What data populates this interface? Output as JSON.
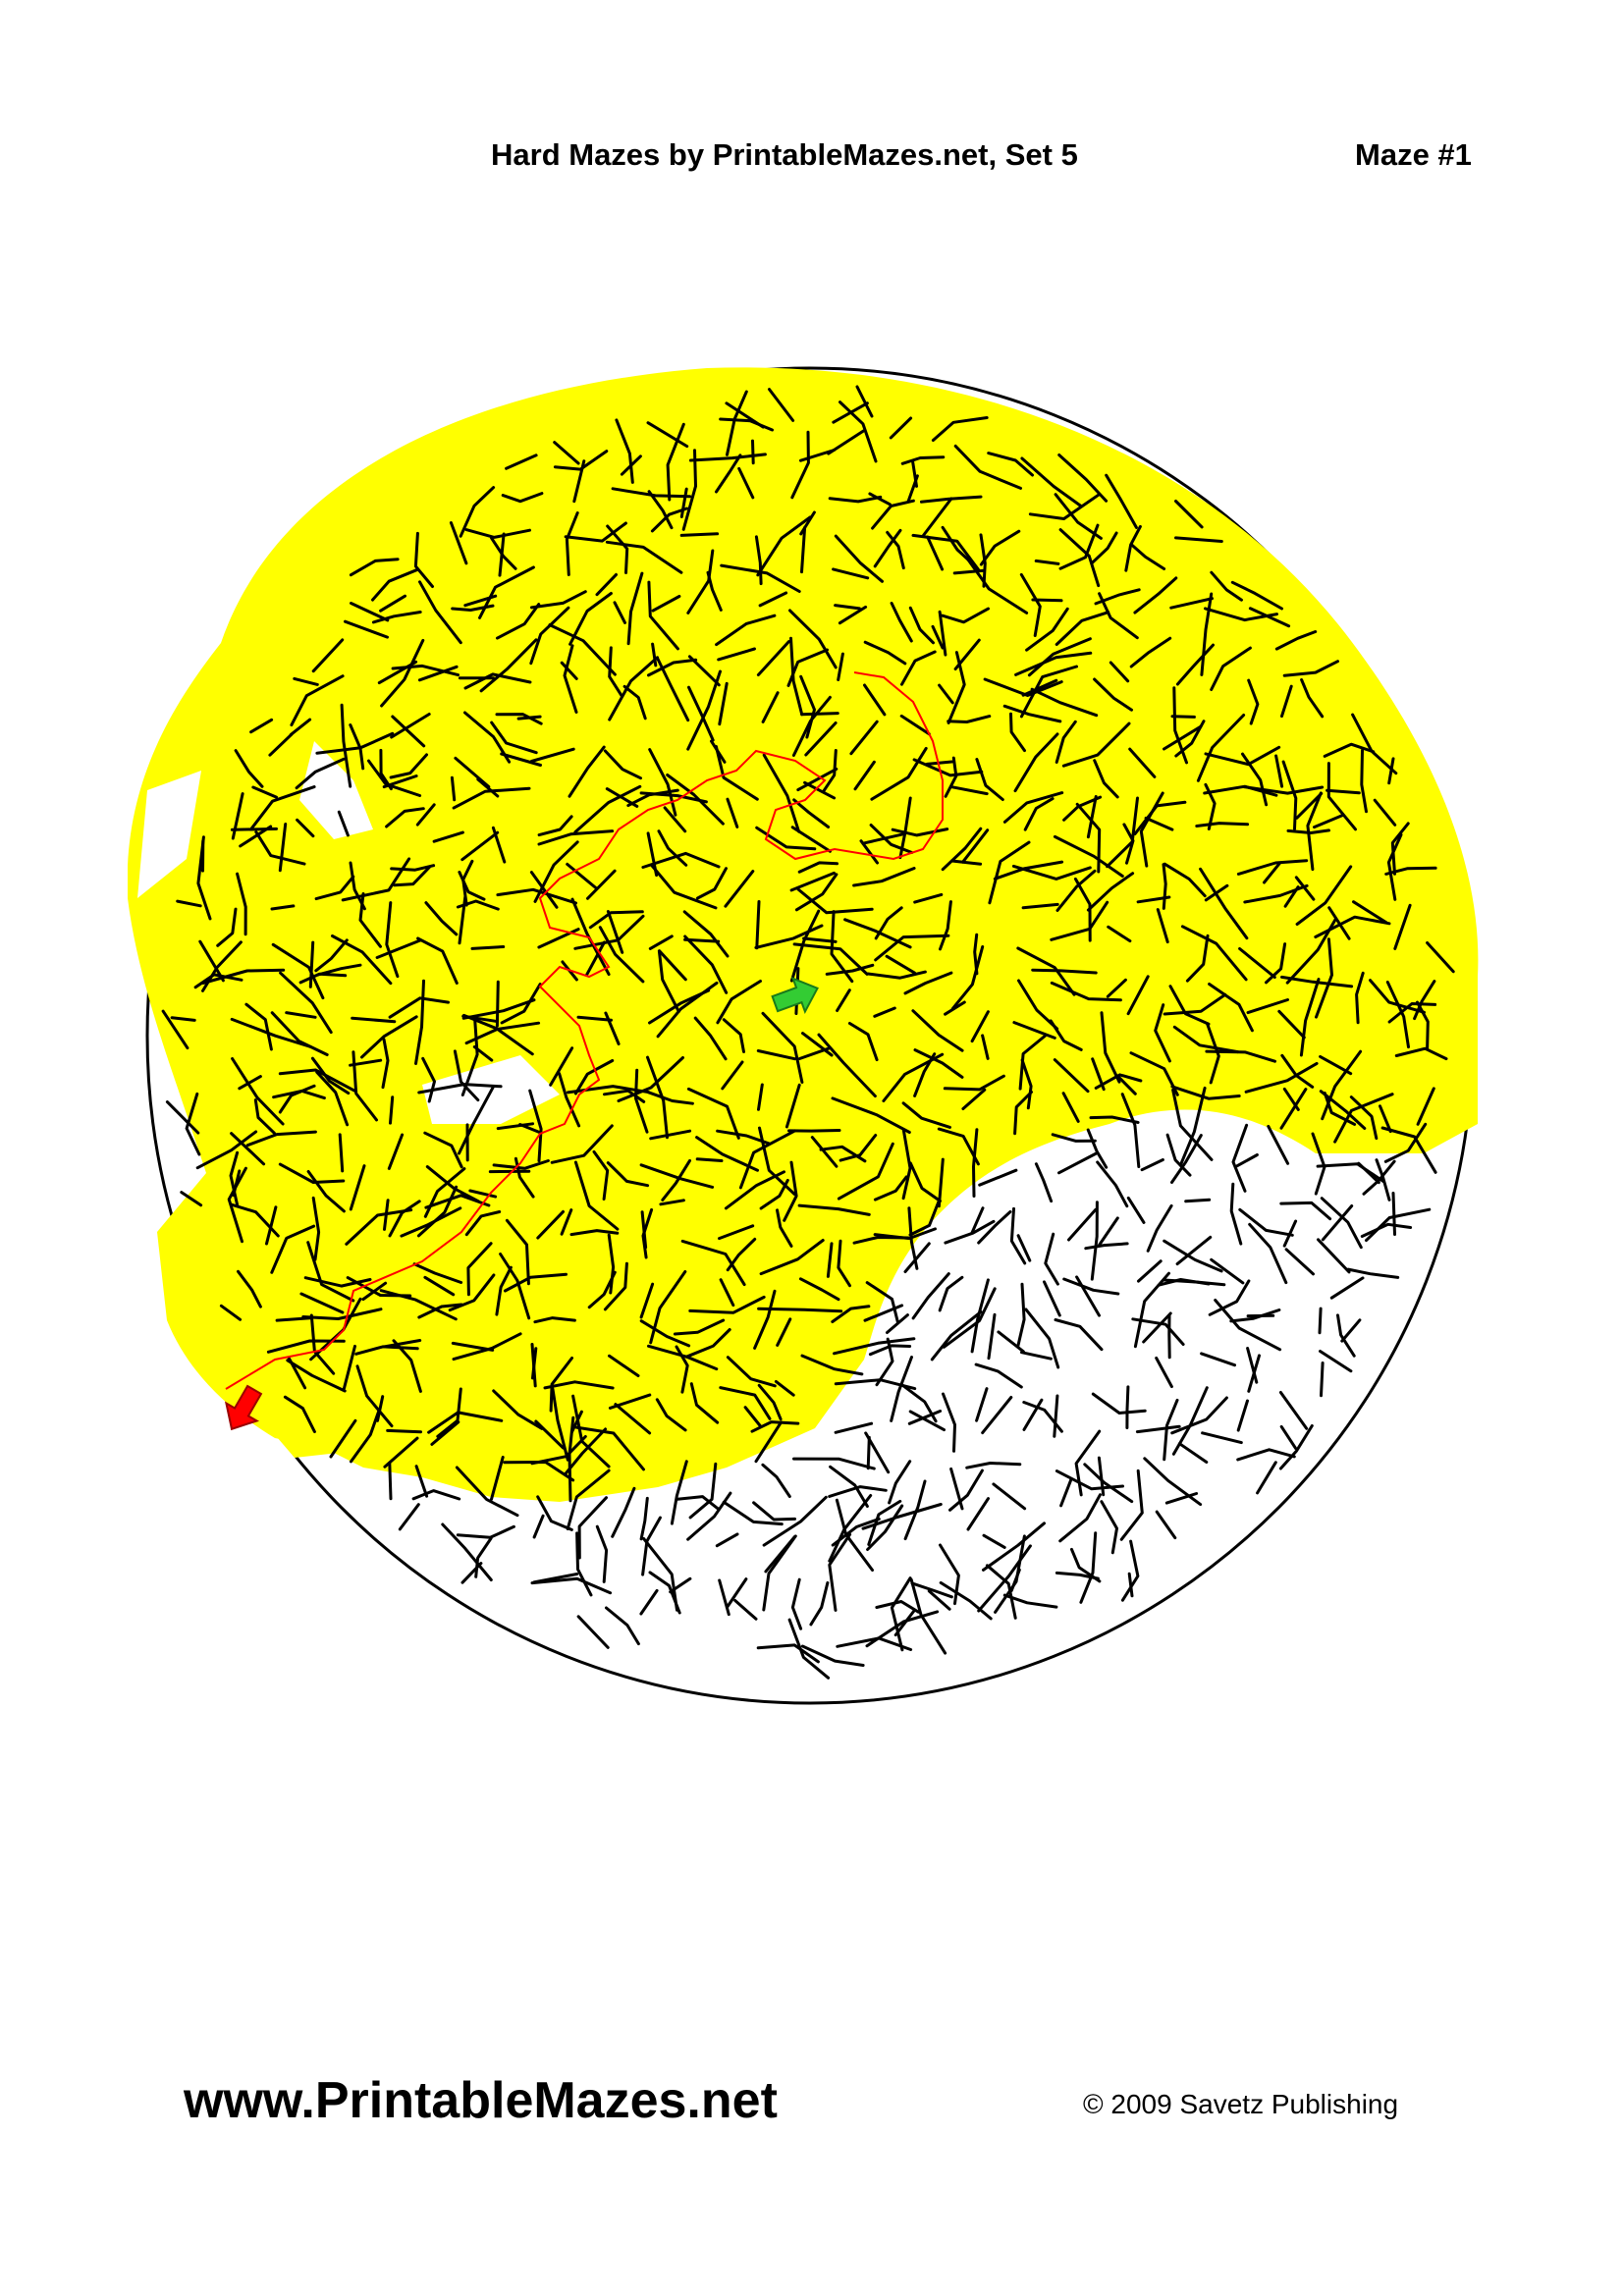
{
  "header": {
    "title": "Hard Mazes by PrintableMazes.net, Set 5",
    "maze_number": "Maze #1"
  },
  "maze": {
    "fill_color": "#ffff00",
    "wall_color": "#000000",
    "solution_color": "#ff0000",
    "start_arrow_color": "#33cc33",
    "end_arrow_color": "#ff0000",
    "start_icon": "start-arrow-icon",
    "end_icon": "exit-arrow-icon"
  },
  "footer": {
    "website": "www.PrintableMazes.net",
    "copyright": "© 2009 Savetz Publishing"
  }
}
